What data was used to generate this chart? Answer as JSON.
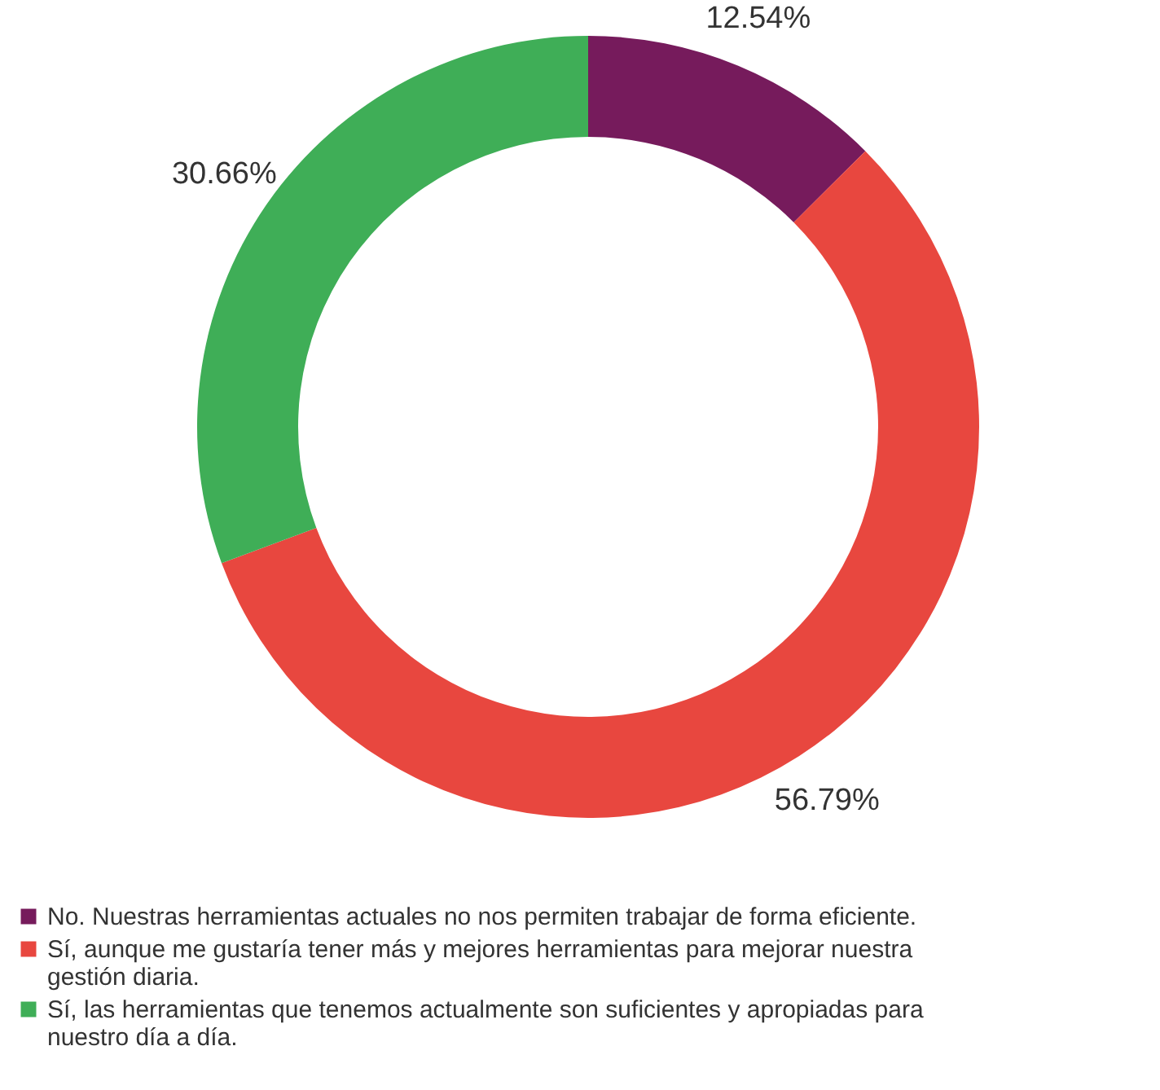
{
  "chart_data": {
    "type": "donut",
    "categories": [
      "No. Nuestras herramientas actuales no nos permiten trabajar de forma eficiente.",
      "Sí, aunque me gustaría tener más y mejores herramientas para mejorar nuestra gestión diaria.",
      "Sí, las herramientas que tenemos actualmente son suficientes y apropiadas para nuestro día a día."
    ],
    "values": [
      12.54,
      56.79,
      30.66
    ],
    "colors": [
      "#761b5c",
      "#e8473f",
      "#3fae57"
    ],
    "value_labels": [
      "12.54%",
      "56.79%",
      "30.66%"
    ],
    "legend": "bottom left"
  }
}
